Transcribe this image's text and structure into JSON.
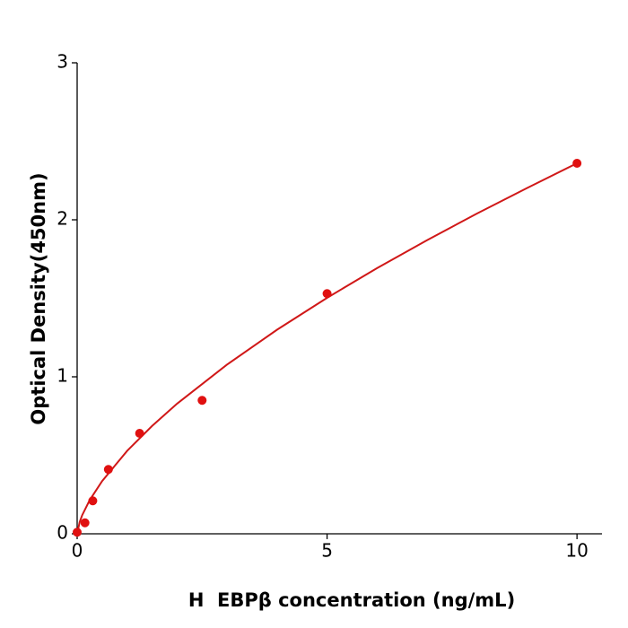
{
  "chart_data": {
    "type": "scatter",
    "x_label": "H  EBPβ concentration (ng/mL)",
    "y_label": "Optical Density(450nm)",
    "xlim": [
      0,
      10.5
    ],
    "ylim": [
      0,
      3
    ],
    "xticks": [
      0,
      5,
      10
    ],
    "yticks": [
      0,
      1,
      2,
      3
    ],
    "series": [
      {
        "mode": "markers",
        "color": "#e01010",
        "x": [
          0,
          0.156,
          0.3125,
          0.625,
          1.25,
          2.5,
          5,
          10
        ],
        "values": [
          0.01,
          0.07,
          0.21,
          0.41,
          0.64,
          0.85,
          1.53,
          2.36
        ]
      },
      {
        "mode": "line",
        "color": "#d01818",
        "x": [
          0,
          0.05,
          0.1,
          0.25,
          0.5,
          1,
          1.5,
          2,
          3,
          4,
          5,
          6,
          7,
          8,
          9,
          10
        ],
        "values": [
          0,
          0.075,
          0.118,
          0.214,
          0.336,
          0.528,
          0.687,
          0.829,
          1.078,
          1.3,
          1.503,
          1.692,
          1.87,
          2.04,
          2.202,
          2.36
        ]
      }
    ]
  }
}
